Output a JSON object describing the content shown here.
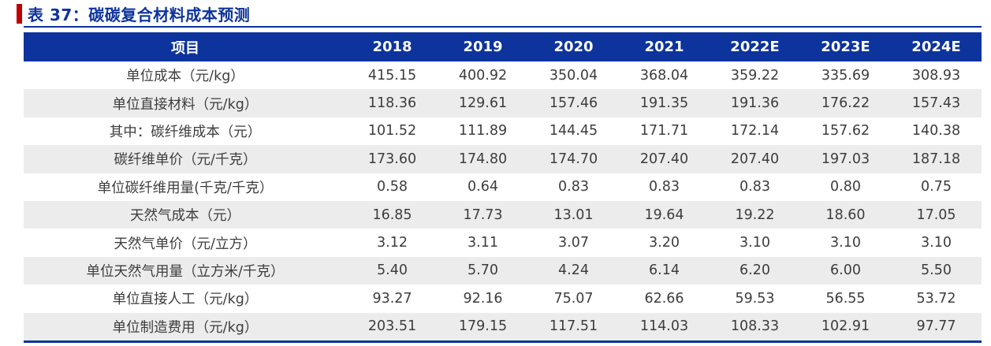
{
  "title": {
    "label": "表 37：碳碳复合材料成本预测"
  },
  "colors": {
    "navy": "#0d339c",
    "red_accent": "#c00000",
    "row_stripe": "#ececec",
    "cell_text": "#3d3d3d",
    "header_text": "#ffffff"
  },
  "table": {
    "columns": [
      "项目",
      "2018",
      "2019",
      "2020",
      "2021",
      "2022E",
      "2023E",
      "2024E"
    ],
    "rows": [
      {
        "label": "单位成本（元/kg）",
        "values": [
          "415.15",
          "400.92",
          "350.04",
          "368.04",
          "359.22",
          "335.69",
          "308.93"
        ]
      },
      {
        "label": "单位直接材料（元/kg）",
        "values": [
          "118.36",
          "129.61",
          "157.46",
          "191.35",
          "191.36",
          "176.22",
          "157.43"
        ]
      },
      {
        "label": "其中：碳纤维成本（元）",
        "values": [
          "101.52",
          "111.89",
          "144.45",
          "171.71",
          "172.14",
          "157.62",
          "140.38"
        ]
      },
      {
        "label": "碳纤维单价（元/千克）",
        "values": [
          "173.60",
          "174.80",
          "174.70",
          "207.40",
          "207.40",
          "197.03",
          "187.18"
        ]
      },
      {
        "label": "单位碳纤维用量(千克/千克）",
        "values": [
          "0.58",
          "0.64",
          "0.83",
          "0.83",
          "0.83",
          "0.80",
          "0.75"
        ]
      },
      {
        "label": "天然气成本（元）",
        "values": [
          "16.85",
          "17.73",
          "13.01",
          "19.64",
          "19.22",
          "18.60",
          "17.05"
        ]
      },
      {
        "label": "天然气单价（元/立方）",
        "values": [
          "3.12",
          "3.11",
          "3.07",
          "3.20",
          "3.10",
          "3.10",
          "3.10"
        ]
      },
      {
        "label": "单位天然气用量（立方米/千克）",
        "values": [
          "5.40",
          "5.70",
          "4.24",
          "6.14",
          "6.20",
          "6.00",
          "5.50"
        ]
      },
      {
        "label": "单位直接人工（元/kg）",
        "values": [
          "93.27",
          "92.16",
          "75.07",
          "62.66",
          "59.53",
          "56.55",
          "53.72"
        ]
      },
      {
        "label": "单位制造费用（元/kg）",
        "values": [
          "203.51",
          "179.15",
          "117.51",
          "114.03",
          "108.33",
          "102.91",
          "97.77"
        ]
      }
    ]
  }
}
